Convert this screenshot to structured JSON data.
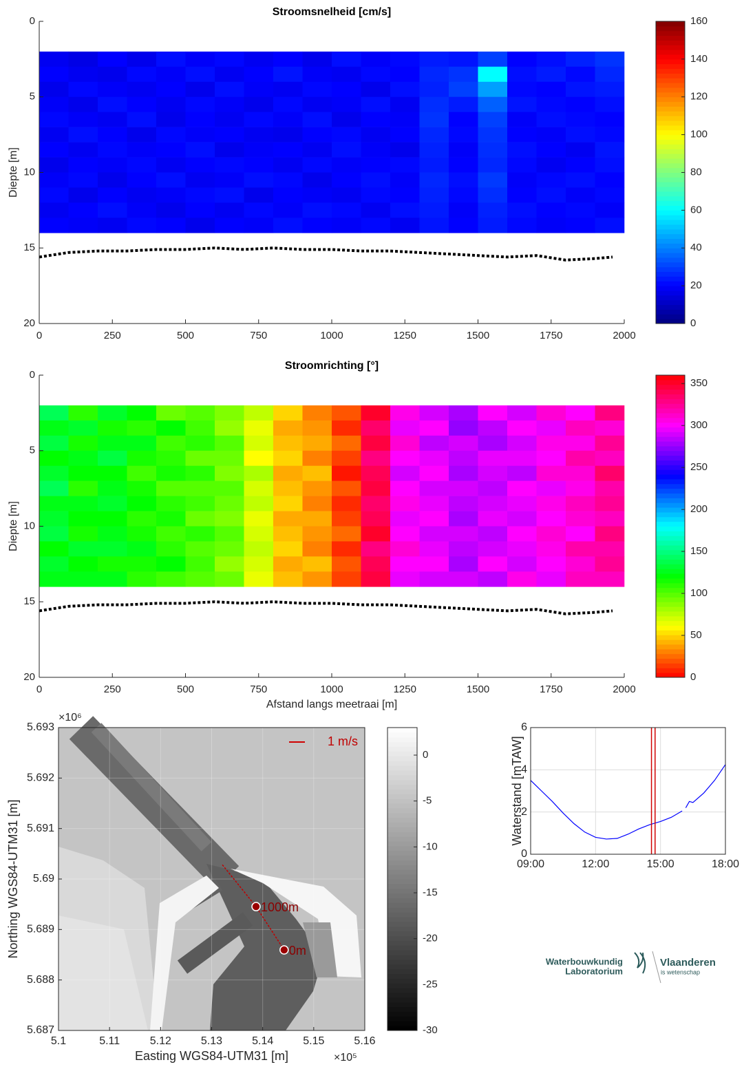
{
  "chart_data": [
    {
      "type": "heatmap",
      "title": "Stroomsnelheid [cm/s]",
      "ylabel": "Diepte [m]",
      "colormap": "jet",
      "xlim": [
        0,
        2000
      ],
      "xticks": [
        0,
        250,
        500,
        750,
        1000,
        1250,
        1500,
        1750,
        2000
      ],
      "ylim": [
        0,
        20
      ],
      "yticks": [
        0,
        5,
        10,
        15,
        20
      ],
      "y_reversed": true,
      "clim": [
        0,
        160
      ],
      "cticks": [
        0,
        20,
        40,
        60,
        80,
        100,
        120,
        140,
        160
      ],
      "x": [
        50,
        150,
        250,
        350,
        450,
        550,
        650,
        750,
        850,
        950,
        1050,
        1150,
        1250,
        1350,
        1450,
        1550,
        1650,
        1750,
        1850,
        1950
      ],
      "y": [
        2.5,
        3.5,
        4.5,
        5.5,
        6.5,
        7.5,
        8.5,
        9.5,
        10.5,
        11.5,
        12.5,
        13.5
      ],
      "z": [
        [
          18,
          16,
          20,
          17,
          22,
          19,
          21,
          18,
          20,
          17,
          22,
          19,
          21,
          24,
          23,
          30,
          20,
          22,
          25,
          28
        ],
        [
          20,
          18,
          17,
          21,
          19,
          22,
          18,
          20,
          23,
          19,
          18,
          21,
          20,
          26,
          28,
          60,
          22,
          24,
          21,
          26
        ],
        [
          17,
          21,
          19,
          18,
          20,
          17,
          22,
          19,
          18,
          21,
          20,
          17,
          22,
          25,
          30,
          45,
          21,
          20,
          23,
          24
        ],
        [
          19,
          17,
          22,
          20,
          18,
          21,
          19,
          17,
          21,
          18,
          19,
          22,
          18,
          27,
          24,
          35,
          23,
          21,
          20,
          22
        ],
        [
          21,
          19,
          18,
          22,
          17,
          20,
          18,
          21,
          19,
          22,
          17,
          20,
          19,
          28,
          20,
          30,
          19,
          22,
          21,
          20
        ],
        [
          18,
          22,
          20,
          17,
          21,
          19,
          20,
          18,
          17,
          20,
          21,
          18,
          20,
          26,
          21,
          28,
          20,
          19,
          22,
          21
        ],
        [
          20,
          18,
          21,
          19,
          20,
          22,
          17,
          19,
          20,
          18,
          22,
          19,
          17,
          25,
          19,
          27,
          22,
          20,
          18,
          23
        ],
        [
          17,
          20,
          19,
          21,
          18,
          20,
          21,
          20,
          18,
          21,
          19,
          20,
          21,
          24,
          20,
          26,
          21,
          18,
          20,
          22
        ],
        [
          19,
          21,
          17,
          20,
          22,
          18,
          19,
          22,
          21,
          17,
          20,
          22,
          19,
          26,
          22,
          29,
          19,
          21,
          22,
          20
        ],
        [
          21,
          17,
          20,
          18,
          19,
          21,
          22,
          17,
          20,
          19,
          18,
          21,
          20,
          25,
          21,
          27,
          20,
          22,
          19,
          21
        ],
        [
          18,
          20,
          22,
          19,
          17,
          20,
          18,
          21,
          19,
          22,
          21,
          18,
          22,
          24,
          19,
          25,
          22,
          20,
          21,
          19
        ],
        [
          20,
          19,
          18,
          21,
          20,
          17,
          20,
          19,
          22,
          20,
          19,
          21,
          18,
          23,
          20,
          24,
          21,
          19,
          20,
          22
        ]
      ],
      "bed": {
        "x": [
          0,
          100,
          200,
          300,
          400,
          500,
          600,
          700,
          800,
          900,
          1000,
          1100,
          1200,
          1300,
          1400,
          1500,
          1600,
          1700,
          1800,
          1900,
          1960
        ],
        "values": [
          15.6,
          15.3,
          15.2,
          15.2,
          15.1,
          15.1,
          15.0,
          15.1,
          15.0,
          15.1,
          15.1,
          15.2,
          15.2,
          15.3,
          15.4,
          15.5,
          15.6,
          15.5,
          15.8,
          15.7,
          15.6
        ],
        "color": "#000000"
      }
    },
    {
      "type": "heatmap",
      "title": "Stroomrichting [°]",
      "ylabel": "Diepte [m]",
      "xlabel": "Afstand langs meetraai [m]",
      "colormap": "hsv",
      "xlim": [
        0,
        2000
      ],
      "xticks": [
        0,
        250,
        500,
        750,
        1000,
        1250,
        1500,
        1750,
        2000
      ],
      "ylim": [
        0,
        20
      ],
      "yticks": [
        0,
        5,
        10,
        15,
        20
      ],
      "y_reversed": true,
      "clim": [
        0,
        360
      ],
      "cticks": [
        0,
        50,
        100,
        150,
        200,
        250,
        300,
        350
      ],
      "x": [
        50,
        150,
        250,
        350,
        450,
        550,
        650,
        750,
        850,
        950,
        1050,
        1150,
        1250,
        1350,
        1450,
        1550,
        1650,
        1750,
        1850,
        1950
      ],
      "y": [
        2.5,
        3.5,
        4.5,
        5.5,
        6.5,
        7.5,
        8.5,
        9.5,
        10.5,
        11.5,
        12.5,
        13.5
      ],
      "z": [
        [
          140,
          110,
          130,
          120,
          95,
          100,
          90,
          75,
          50,
          30,
          20,
          350,
          305,
          290,
          280,
          300,
          290,
          310,
          300,
          330
        ],
        [
          125,
          130,
          115,
          110,
          120,
          105,
          85,
          65,
          40,
          35,
          10,
          335,
          295,
          300,
          275,
          285,
          300,
          295,
          315,
          310
        ],
        [
          135,
          115,
          125,
          125,
          105,
          110,
          100,
          70,
          45,
          40,
          25,
          345,
          310,
          285,
          290,
          280,
          290,
          305,
          305,
          325
        ],
        [
          120,
          125,
          135,
          115,
          110,
          95,
          95,
          60,
          50,
          30,
          15,
          330,
          300,
          295,
          285,
          295,
          295,
          300,
          320,
          315
        ],
        [
          130,
          120,
          120,
          105,
          115,
          110,
          90,
          80,
          40,
          45,
          5,
          340,
          290,
          300,
          280,
          290,
          285,
          310,
          310,
          335
        ],
        [
          140,
          110,
          125,
          115,
          100,
          100,
          100,
          70,
          45,
          35,
          20,
          345,
          300,
          290,
          290,
          285,
          300,
          295,
          305,
          320
        ],
        [
          125,
          125,
          130,
          120,
          110,
          105,
          95,
          75,
          50,
          30,
          10,
          335,
          305,
          295,
          285,
          290,
          295,
          305,
          315,
          325
        ],
        [
          130,
          120,
          120,
          110,
          115,
          95,
          90,
          65,
          40,
          40,
          15,
          340,
          295,
          300,
          280,
          295,
          290,
          300,
          310,
          315
        ],
        [
          135,
          115,
          125,
          115,
          105,
          110,
          100,
          70,
          45,
          35,
          25,
          350,
          300,
          290,
          290,
          285,
          300,
          310,
          300,
          330
        ],
        [
          120,
          130,
          130,
          125,
          110,
          100,
          95,
          75,
          50,
          30,
          10,
          330,
          310,
          295,
          285,
          290,
          295,
          305,
          320,
          320
        ],
        [
          130,
          120,
          115,
          115,
          120,
          105,
          85,
          70,
          40,
          45,
          20,
          340,
          300,
          300,
          280,
          300,
          290,
          300,
          310,
          325
        ],
        [
          125,
          125,
          125,
          110,
          105,
          100,
          95,
          65,
          45,
          35,
          15,
          345,
          295,
          290,
          290,
          285,
          305,
          295,
          315,
          315
        ]
      ],
      "bed": {
        "x": [
          0,
          100,
          200,
          300,
          400,
          500,
          600,
          700,
          800,
          900,
          1000,
          1100,
          1200,
          1300,
          1400,
          1500,
          1600,
          1700,
          1800,
          1900,
          1960
        ],
        "values": [
          15.6,
          15.3,
          15.2,
          15.2,
          15.1,
          15.1,
          15.0,
          15.1,
          15.0,
          15.1,
          15.1,
          15.2,
          15.2,
          15.3,
          15.4,
          15.5,
          15.6,
          15.5,
          15.8,
          15.7,
          15.6
        ],
        "color": "#000000"
      }
    },
    {
      "type": "map",
      "xlabel": "Easting WGS84-UTM31 [m]",
      "ylabel": "Northing WGS84-UTM31 [m]",
      "x_multiplier": "×10⁵",
      "y_multiplier": "×10⁶",
      "xlim": [
        510000,
        516000
      ],
      "xticks": [
        {
          "value": 510000,
          "label": "5.1"
        },
        {
          "value": 511000,
          "label": "5.11"
        },
        {
          "value": 512000,
          "label": "5.12"
        },
        {
          "value": 513000,
          "label": "5.13"
        },
        {
          "value": 514000,
          "label": "5.14"
        },
        {
          "value": 515000,
          "label": "5.15"
        },
        {
          "value": 516000,
          "label": "5.16"
        }
      ],
      "ylim": [
        5687000,
        5693000
      ],
      "yticks": [
        {
          "value": 5687000,
          "label": "5.687"
        },
        {
          "value": 5688000,
          "label": "5.688"
        },
        {
          "value": 5689000,
          "label": "5.689"
        },
        {
          "value": 5690000,
          "label": "5.69"
        },
        {
          "value": 5691000,
          "label": "5.691"
        },
        {
          "value": 5692000,
          "label": "5.692"
        },
        {
          "value": 5693000,
          "label": "5.693"
        }
      ],
      "colormap": "gray",
      "clim": [
        -30,
        3
      ],
      "cticks": [
        -30,
        -25,
        -20,
        -15,
        -10,
        -5,
        0
      ],
      "scale_label": "1 m/s",
      "track_color": "#c00000",
      "track_x": [
        514420,
        513870,
        513196
      ],
      "track_y": [
        5688595,
        5689454,
        5690300
      ],
      "points": [
        {
          "label": "0m",
          "x": 514420,
          "y": 5688595
        },
        {
          "label": "1000m",
          "x": 513870,
          "y": 5689454
        }
      ]
    },
    {
      "type": "line",
      "ylabel": "Waterstand [mTAW]",
      "color": "#0000ff",
      "grid": true,
      "x": [
        "09:00",
        "09:30",
        "10:00",
        "10:30",
        "11:00",
        "11:30",
        "12:00",
        "12:30",
        "13:00",
        "13:30",
        "14:00",
        "14:30",
        "15:00",
        "15:30",
        "16:00",
        "16:05",
        "16:10",
        "16:20",
        "16:30",
        "17:00",
        "17:30",
        "18:00"
      ],
      "values": [
        3.5,
        3.0,
        2.5,
        1.95,
        1.45,
        1.05,
        0.8,
        0.72,
        0.75,
        0.95,
        1.2,
        1.4,
        1.55,
        1.75,
        2.05,
        null,
        2.2,
        2.5,
        2.45,
        2.9,
        3.5,
        4.25
      ],
      "xlim": [
        "09:00",
        "18:00"
      ],
      "xticks": [
        "09:00",
        "12:00",
        "15:00",
        "18:00"
      ],
      "ylim": [
        0,
        6
      ],
      "yticks": [
        0,
        2,
        4,
        6
      ],
      "vlines": [
        "14:35",
        "14:45"
      ],
      "vline_color": "#d00000"
    }
  ],
  "logo": {
    "line1": "Waterbouwkundig",
    "line2": "Laboratorium",
    "brand": "Vlaanderen",
    "tagline": "is wetenschap"
  }
}
